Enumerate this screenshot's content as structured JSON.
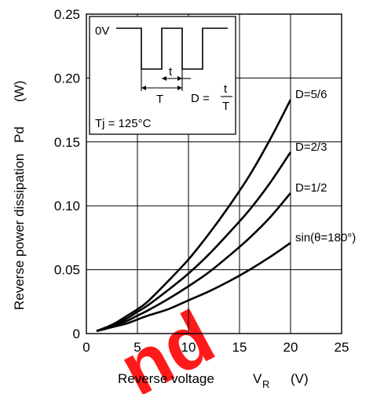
{
  "chart_data": {
    "type": "line",
    "title": "",
    "xlabel": "Reverse voltage",
    "xlabel_symbol": "V",
    "xlabel_subscript": "R",
    "xlabel_unit": "(V)",
    "ylabel": "Reverse power dissipation",
    "ylabel_symbol": "Pd",
    "ylabel_unit": "(W)",
    "xlim": [
      0,
      25
    ],
    "ylim": [
      0,
      0.25
    ],
    "x_ticks": [
      0,
      5,
      10,
      15,
      20,
      25
    ],
    "x_tick_labels": [
      "0",
      "5",
      "10",
      "15",
      "20",
      "25"
    ],
    "y_ticks": [
      0,
      0.05,
      0.1,
      0.15,
      0.2,
      0.25
    ],
    "y_tick_labels": [
      "0",
      "0.05",
      "0.10",
      "0.15",
      "0.20",
      "0.25"
    ],
    "grid": true,
    "series": [
      {
        "name": "D=5/6",
        "x": [
          1,
          2,
          3,
          4,
          5,
          6,
          8,
          10,
          12,
          14,
          16,
          18,
          20
        ],
        "y": [
          0.002,
          0.005,
          0.009,
          0.014,
          0.019,
          0.025,
          0.041,
          0.058,
          0.078,
          0.1,
          0.124,
          0.152,
          0.183
        ]
      },
      {
        "name": "D=2/3",
        "x": [
          1,
          2,
          3,
          4,
          5,
          6,
          8,
          10,
          12,
          14,
          16,
          18,
          20
        ],
        "y": [
          0.002,
          0.005,
          0.008,
          0.012,
          0.017,
          0.022,
          0.034,
          0.047,
          0.062,
          0.079,
          0.097,
          0.118,
          0.142
        ]
      },
      {
        "name": "D=1/2",
        "x": [
          1,
          2,
          3,
          4,
          5,
          6,
          8,
          10,
          12,
          14,
          16,
          18,
          20
        ],
        "y": [
          0.002,
          0.004,
          0.007,
          0.01,
          0.014,
          0.018,
          0.027,
          0.037,
          0.048,
          0.061,
          0.075,
          0.091,
          0.11
        ]
      },
      {
        "name": "sin(θ=180°)",
        "x": [
          1,
          2,
          3,
          4,
          5,
          6,
          8,
          10,
          12,
          14,
          16,
          18,
          20
        ],
        "y": [
          0.002,
          0.004,
          0.006,
          0.008,
          0.011,
          0.014,
          0.019,
          0.026,
          0.033,
          0.041,
          0.05,
          0.06,
          0.071
        ]
      }
    ],
    "inset": {
      "level_label": "0V",
      "pulse_width_label": "t",
      "period_label": "T",
      "duty_formula_lhs": "D =",
      "duty_formula_num": "t",
      "duty_formula_den": "T",
      "temperature": "Tj = 125°C"
    }
  },
  "watermark": "nd"
}
